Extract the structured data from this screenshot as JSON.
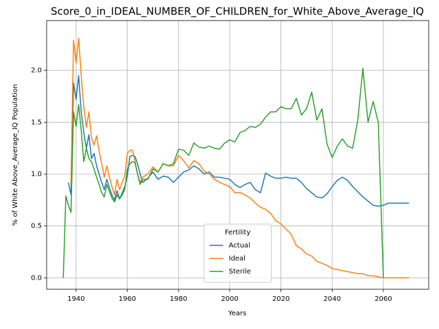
{
  "chart_data": {
    "type": "line",
    "title": "Score_0_in_IDEAL_NUMBER_OF_CHILDREN_for_White_Above_Average_IQ",
    "x_label": "Years",
    "y_label": "% of White Above_Average_IQ Population",
    "legend_title": "Fertility",
    "legend_position": "lower center",
    "grid": true,
    "x": [
      1935,
      1936,
      1937,
      1938,
      1939,
      1940,
      1941,
      1942,
      1943,
      1944,
      1945,
      1946,
      1947,
      1948,
      1949,
      1950,
      1951,
      1952,
      1953,
      1954,
      1955,
      1956,
      1957,
      1958,
      1959,
      1960,
      1961,
      1962,
      1963,
      1964,
      1965,
      1966,
      1968,
      1970,
      1972,
      1974,
      1976,
      1978,
      1980,
      1982,
      1984,
      1986,
      1988,
      1990,
      1992,
      1994,
      1996,
      1998,
      2000,
      2002,
      2004,
      2006,
      2008,
      2010,
      2012,
      2014,
      2016,
      2018,
      2020,
      2022,
      2024,
      2026,
      2028,
      2030,
      2032,
      2034,
      2036,
      2038,
      2040,
      2042,
      2044,
      2046,
      2048,
      2050,
      2052,
      2054,
      2056,
      2058,
      2060,
      2062,
      2064,
      2066,
      2068,
      2070
    ],
    "series": [
      {
        "name": "Actual",
        "color": "#1f77b4",
        "values": [
          null,
          null,
          0.92,
          0.8,
          1.88,
          1.72,
          1.95,
          1.6,
          1.4,
          1.25,
          1.38,
          1.15,
          1.2,
          1.08,
          1.0,
          0.92,
          0.85,
          0.95,
          0.87,
          0.8,
          0.75,
          0.84,
          0.76,
          0.82,
          0.88,
          0.98,
          1.17,
          1.18,
          1.17,
          1.1,
          1.0,
          0.92,
          0.96,
          1.02,
          0.95,
          0.98,
          0.97,
          0.92,
          0.97,
          1.02,
          1.04,
          1.08,
          1.05,
          1.0,
          1.02,
          0.97,
          0.97,
          0.96,
          0.95,
          0.9,
          0.87,
          0.9,
          0.92,
          0.85,
          0.82,
          1.01,
          0.98,
          0.96,
          0.96,
          0.97,
          0.96,
          0.96,
          0.92,
          0.86,
          0.82,
          0.78,
          0.77,
          0.81,
          0.88,
          0.94,
          0.97,
          0.94,
          0.88,
          0.83,
          0.78,
          0.74,
          0.7,
          0.69,
          0.7,
          0.72,
          0.72,
          0.72,
          0.72,
          0.72
        ]
      },
      {
        "name": "Ideal",
        "color": "#ff7f0e",
        "values": [
          null,
          null,
          null,
          0.9,
          2.29,
          2.07,
          2.31,
          1.95,
          1.65,
          1.45,
          1.6,
          1.35,
          1.28,
          1.37,
          1.22,
          1.1,
          0.97,
          1.08,
          0.97,
          0.88,
          0.8,
          0.95,
          0.85,
          0.92,
          0.98,
          1.2,
          1.23,
          1.23,
          1.13,
          1.0,
          0.92,
          0.97,
          1.0,
          1.07,
          1.02,
          1.1,
          1.08,
          1.08,
          1.18,
          1.13,
          1.06,
          1.13,
          1.1,
          1.03,
          1.0,
          0.95,
          0.92,
          0.9,
          0.88,
          0.82,
          0.82,
          0.8,
          0.77,
          0.72,
          0.68,
          0.66,
          0.62,
          0.55,
          0.52,
          0.47,
          0.42,
          0.31,
          0.28,
          0.23,
          0.21,
          0.16,
          0.14,
          0.12,
          0.09,
          0.08,
          0.07,
          0.06,
          0.05,
          0.04,
          0.04,
          0.02,
          0.02,
          0.01,
          0,
          0,
          0,
          0,
          0,
          0
        ]
      },
      {
        "name": "Sterile",
        "color": "#2ca02c",
        "values": [
          0,
          0.79,
          0.7,
          0.63,
          1.6,
          1.46,
          1.67,
          1.42,
          1.12,
          1.25,
          1.15,
          1.12,
          1.05,
          0.97,
          0.9,
          0.82,
          0.78,
          0.9,
          0.83,
          0.77,
          0.73,
          0.8,
          0.76,
          0.8,
          0.85,
          1.05,
          1.1,
          1.12,
          1.11,
          1.0,
          0.9,
          0.95,
          0.95,
          1.05,
          1.02,
          1.1,
          1.08,
          1.1,
          1.24,
          1.23,
          1.18,
          1.3,
          1.26,
          1.25,
          1.27,
          1.25,
          1.24,
          1.3,
          1.33,
          1.31,
          1.4,
          1.42,
          1.46,
          1.45,
          1.48,
          1.55,
          1.6,
          1.6,
          1.65,
          1.63,
          1.63,
          1.73,
          1.57,
          1.63,
          1.79,
          1.52,
          1.63,
          1.29,
          1.16,
          1.27,
          1.34,
          1.27,
          1.25,
          1.52,
          2.02,
          1.5,
          1.7,
          1.5,
          0,
          null,
          null,
          null,
          null,
          null
        ]
      }
    ],
    "xlim": [
      1928.5,
      2077.7
    ],
    "ylim": [
      -0.11,
      2.48
    ],
    "xticks": [
      1940,
      1960,
      1980,
      2000,
      2020,
      2040,
      2060
    ],
    "yticks": [
      {
        "value": 0,
        "label": "0.0"
      },
      {
        "value": 0.5,
        "label": "0.5"
      },
      {
        "value": 1,
        "label": "1.0"
      },
      {
        "value": 1.5,
        "label": "1.5"
      },
      {
        "value": 2,
        "label": "2.0"
      }
    ]
  }
}
